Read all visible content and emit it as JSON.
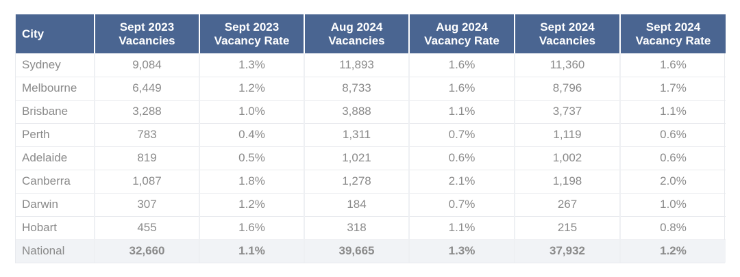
{
  "table": {
    "headers": [
      [
        "City",
        ""
      ],
      [
        "Sept 2023",
        "Vacancies"
      ],
      [
        "Sept 2023",
        "Vacancy Rate"
      ],
      [
        "Aug 2024",
        "Vacancies"
      ],
      [
        "Aug 2024",
        "Vacancy Rate"
      ],
      [
        "Sept 2024",
        "Vacancies"
      ],
      [
        "Sept 2024",
        "Vacancy Rate"
      ]
    ],
    "rows": [
      [
        "Sydney",
        "9,084",
        "1.3%",
        "11,893",
        "1.6%",
        "11,360",
        "1.6%"
      ],
      [
        "Melbourne",
        "6,449",
        "1.2%",
        "8,733",
        "1.6%",
        "8,796",
        "1.7%"
      ],
      [
        "Brisbane",
        "3,288",
        "1.0%",
        "3,888",
        "1.1%",
        "3,737",
        "1.1%"
      ],
      [
        "Perth",
        "783",
        "0.4%",
        "1,311",
        "0.7%",
        "1,119",
        "0.6%"
      ],
      [
        "Adelaide",
        "819",
        "0.5%",
        "1,021",
        "0.6%",
        "1,002",
        "0.6%"
      ],
      [
        "Canberra",
        "1,087",
        "1.8%",
        "1,278",
        "2.1%",
        "1,198",
        "2.0%"
      ],
      [
        "Darwin",
        "307",
        "1.2%",
        "184",
        "0.7%",
        "267",
        "1.0%"
      ],
      [
        "Hobart",
        "455",
        "1.6%",
        "318",
        "1.1%",
        "215",
        "0.8%"
      ],
      [
        "National",
        "32,660",
        "1.1%",
        "39,665",
        "1.3%",
        "37,932",
        "1.2%"
      ]
    ]
  },
  "colors": {
    "header_bg": "#4a6591",
    "header_text": "#ffffff",
    "body_text": "#8a8a8a",
    "national_bg": "#f1f3f6"
  }
}
